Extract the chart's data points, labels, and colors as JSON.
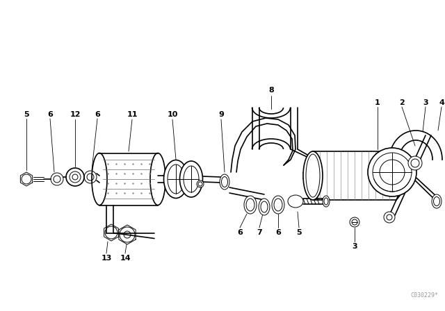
{
  "bg_color": "#ffffff",
  "line_color": "#000000",
  "fig_width": 6.4,
  "fig_height": 4.48,
  "dpi": 100,
  "watermark": "C030229*"
}
